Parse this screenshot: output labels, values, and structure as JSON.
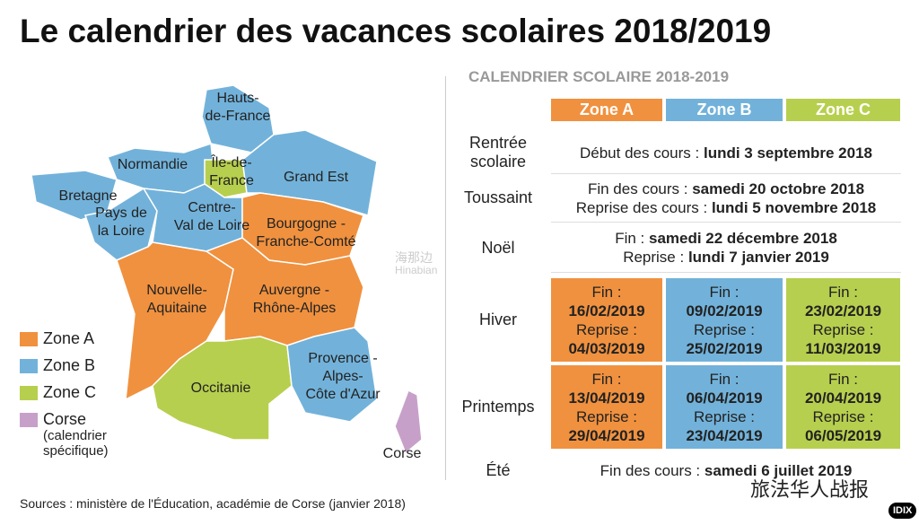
{
  "title": "Le calendrier des vacances scolaires 2018/2019",
  "map": {
    "legend": [
      {
        "label": "Zone A",
        "color": "#f0913f"
      },
      {
        "label": "Zone B",
        "color": "#72b2da"
      },
      {
        "label": "Zone C",
        "color": "#b7cf4e"
      },
      {
        "label": "Corse",
        "note": [
          "(calendrier",
          "spécifique)"
        ],
        "color": "#c7a0c9"
      }
    ],
    "regions": [
      {
        "lines": [
          "Hauts-",
          "de-France"
        ],
        "zone": 1
      },
      {
        "lines": [
          "Normandie"
        ],
        "zone": 1
      },
      {
        "lines": [
          "Île-de-",
          "France"
        ],
        "zone": 2
      },
      {
        "lines": [
          "Grand Est"
        ],
        "zone": 1
      },
      {
        "lines": [
          "Bretagne"
        ],
        "zone": 1
      },
      {
        "lines": [
          "Pays de",
          "la Loire"
        ],
        "zone": 1
      },
      {
        "lines": [
          "Centre-",
          "Val de Loire"
        ],
        "zone": 1
      },
      {
        "lines": [
          "Bourgogne -",
          "Franche-Comté"
        ],
        "zone": 0
      },
      {
        "lines": [
          "Nouvelle-",
          "Aquitaine"
        ],
        "zone": 0
      },
      {
        "lines": [
          "Auvergne -",
          "Rhône-Alpes"
        ],
        "zone": 0
      },
      {
        "lines": [
          "Occitanie"
        ],
        "zone": 2
      },
      {
        "lines": [
          "Provence -",
          "Alpes-",
          "Côte d'Azur"
        ],
        "zone": 1
      },
      {
        "lines": [
          "Corse"
        ],
        "zone": 3
      }
    ]
  },
  "table": {
    "title": "CALENDRIER SCOLAIRE 2018-2019",
    "zones": [
      "Zone A",
      "Zone B",
      "Zone C"
    ],
    "rows": [
      {
        "label": [
          "Rentrée",
          "scolaire"
        ],
        "all": [
          {
            "label": "Début des cours :",
            "date": "lundi 3 septembre 2018"
          }
        ]
      },
      {
        "label": [
          "Toussaint"
        ],
        "all": [
          {
            "label": "Fin des cours :",
            "date": "samedi 20 octobre 2018"
          },
          {
            "label": "Reprise des cours :",
            "date": "lundi 5 novembre 2018"
          }
        ]
      },
      {
        "label": [
          "Noël"
        ],
        "all": [
          {
            "label": "Fin :",
            "date": "samedi 22 décembre 2018"
          },
          {
            "label": "Reprise :",
            "date": "lundi 7 janvier 2019"
          }
        ]
      },
      {
        "label": [
          "Hiver"
        ],
        "zones": [
          {
            "end_label": "Fin :",
            "end": "16/02/2019",
            "resume_label": "Reprise :",
            "resume": "04/03/2019"
          },
          {
            "end_label": "Fin :",
            "end": "09/02/2019",
            "resume_label": "Reprise :",
            "resume": "25/02/2019"
          },
          {
            "end_label": "Fin :",
            "end": "23/02/2019",
            "resume_label": "Reprise :",
            "resume": "11/03/2019"
          }
        ]
      },
      {
        "label": [
          "Printemps"
        ],
        "zones": [
          {
            "end_label": "Fin :",
            "end": "13/04/2019",
            "resume_label": "Reprise :",
            "resume": "29/04/2019"
          },
          {
            "end_label": "Fin :",
            "end": "06/04/2019",
            "resume_label": "Reprise :",
            "resume": "23/04/2019"
          },
          {
            "end_label": "Fin :",
            "end": "20/04/2019",
            "resume_label": "Reprise :",
            "resume": "06/05/2019"
          }
        ]
      },
      {
        "label": [
          "Été"
        ],
        "all": [
          {
            "label": "Fin des cours :",
            "date": "samedi 6 juillet 2019"
          }
        ]
      }
    ]
  },
  "source": "Sources : ministère de l'Éducation, académie de Corse (janvier 2018)",
  "watermarks": [
    "海那边",
    "Hinabian",
    "旅法华人战报",
    "IDIX"
  ]
}
